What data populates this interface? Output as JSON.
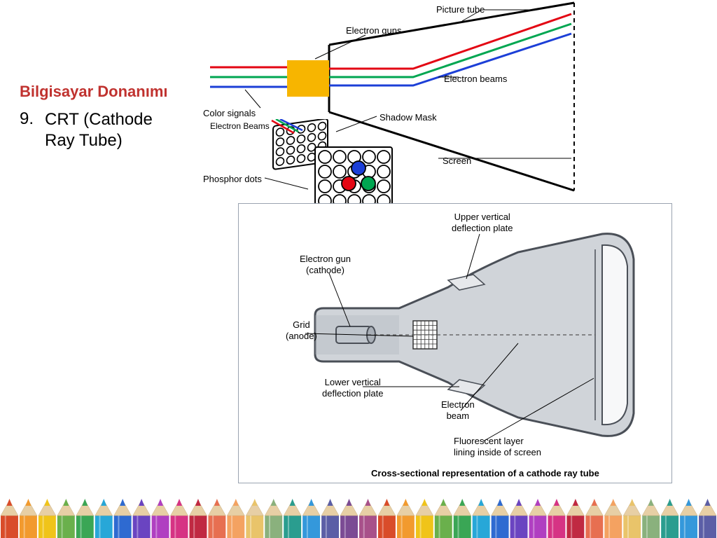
{
  "title": {
    "text": "Bilgisayar Donanımı",
    "color": "#c0322f",
    "fontsize": 22
  },
  "list": {
    "number": "9.",
    "text": "CRT (Cathode Ray Tube)"
  },
  "topDiagram": {
    "labels": {
      "pictureTube": "Picture tube",
      "electronGuns": "Electron guns",
      "colorSignals": "Color signals",
      "electronBeamsSmall": "Electron Beams",
      "electronBeams": "Electron beams",
      "shadowMask": "Shadow Mask",
      "screen": "Screen",
      "phosphorDots": "Phosphor dots"
    },
    "colors": {
      "red": "#e30613",
      "green": "#00a651",
      "blue": "#1c3fd7",
      "gunBody": "#f7b500",
      "outline": "#000000"
    }
  },
  "bottomDiagram": {
    "labels": {
      "upperPlate": "Upper vertical\ndeflection plate",
      "electronGun": "Electron gun\n(cathode)",
      "grid": "Grid\n(anode)",
      "lowerPlate": "Lower vertical\ndeflection plate",
      "electronBeam": "Electron\nbeam",
      "fluorescent": "Fluorescent layer\nlining inside of screen"
    },
    "caption": "Cross-sectional representation of a cathode ray tube",
    "colors": {
      "tubeFill": "#d0d4d9",
      "tubeDark": "#aeb4bc",
      "tubeStroke": "#4a4f57",
      "grid": "#333333",
      "plate": "#e6e8eb",
      "screenInner": "#f7f8f9"
    }
  },
  "pencilColors": [
    "#d94c2a",
    "#f29a2e",
    "#f0c419",
    "#6ab04c",
    "#3aa655",
    "#27a7d8",
    "#2e6ad1",
    "#6a44c1",
    "#b03fc1",
    "#d63384",
    "#c02942",
    "#e76f51",
    "#f4a261",
    "#e9c46a",
    "#8ab17d",
    "#2a9d8f",
    "#3498db",
    "#5b5ea6",
    "#7b4b94",
    "#a8518a",
    "#d94c2a",
    "#f29a2e",
    "#f0c419",
    "#6ab04c",
    "#3aa655",
    "#27a7d8",
    "#2e6ad1",
    "#6a44c1",
    "#b03fc1",
    "#d63384",
    "#c02942",
    "#e76f51",
    "#f4a261",
    "#e9c46a",
    "#8ab17d",
    "#2a9d8f",
    "#3498db",
    "#5b5ea6"
  ]
}
